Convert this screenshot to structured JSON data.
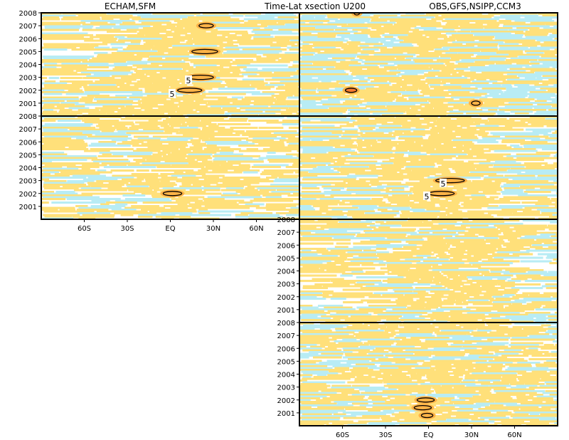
{
  "titles": {
    "left": "ECHAM,SFM",
    "center": "Time-Lat xsection U200",
    "right": "OBS,GFS,NSIPP,CCM3"
  },
  "colors": {
    "positive_light": "#ffe07a",
    "positive_mid": "#ffb347",
    "positive_strong": "#f57a30",
    "negative_light": "#b8ecf4",
    "negative_mid": "#7fd0ee",
    "contour": "#000000"
  },
  "chart_data": [
    {
      "type": "heatmap",
      "panel": "ECHAM",
      "x_ticks": [
        "60S",
        "30S",
        "EQ",
        "30N",
        "60N"
      ],
      "y_ticks": [
        "2001",
        "2002",
        "2003",
        "2004",
        "2005",
        "2006",
        "2007",
        "2008"
      ],
      "x_range": [
        "90S",
        "90N"
      ],
      "y_range": [
        2000,
        2008
      ],
      "contour_labels": [
        "5",
        "5"
      ],
      "contours": [
        {
          "lat_from": 5,
          "lat_to": 22,
          "year": 2002.0
        },
        {
          "lat_from": 12,
          "lat_to": 30,
          "year": 2003.0
        },
        {
          "lat_from": 15,
          "lat_to": 33,
          "year": 2005.0
        },
        {
          "lat_from": 20,
          "lat_to": 30,
          "year": 2007.0
        }
      ]
    },
    {
      "type": "heatmap",
      "panel": "OBS",
      "x_ticks": [
        "60S",
        "30S",
        "EQ",
        "30N",
        "60N"
      ],
      "y_ticks": [
        "2001",
        "2002",
        "2003",
        "2004",
        "2005",
        "2006",
        "2007",
        "2008"
      ],
      "x_range": [
        "90S",
        "90N"
      ],
      "y_range": [
        2000,
        2008
      ],
      "contour_labels": [],
      "contours": [
        {
          "lat_from": -58,
          "lat_to": -50,
          "year": 2002.0
        },
        {
          "lat_from": -52,
          "lat_to": -48,
          "year": 2008.0
        },
        {
          "lat_from": 30,
          "lat_to": 36,
          "year": 2001.0
        }
      ]
    },
    {
      "type": "heatmap",
      "panel": "SFM",
      "x_ticks": [
        "60S",
        "30S",
        "EQ",
        "30N",
        "60N"
      ],
      "y_ticks": [
        "2001",
        "2002",
        "2003",
        "2004",
        "2005",
        "2006",
        "2007",
        "2008"
      ],
      "x_range": [
        "90S",
        "90N"
      ],
      "y_range": [
        2000,
        2008
      ],
      "contour_labels": [],
      "contours": [
        {
          "lat_from": -5,
          "lat_to": 8,
          "year": 2002.0
        }
      ]
    },
    {
      "type": "heatmap",
      "panel": "GFS",
      "x_ticks": [
        "60S",
        "30S",
        "EQ",
        "30N",
        "60N"
      ],
      "y_ticks": [
        "2001",
        "2002",
        "2003",
        "2004",
        "2005",
        "2006",
        "2007",
        "2008"
      ],
      "x_range": [
        "90S",
        "90N"
      ],
      "y_range": [
        2000,
        2008
      ],
      "contour_labels": [
        "5",
        "5"
      ],
      "contours": [
        {
          "lat_from": 5,
          "lat_to": 25,
          "year": 2003.0
        },
        {
          "lat_from": 0,
          "lat_to": 18,
          "year": 2002.0
        }
      ]
    },
    {
      "type": "heatmap",
      "panel": "NSIPP",
      "x_ticks": [
        "60S",
        "30S",
        "EQ",
        "30N",
        "60N"
      ],
      "y_ticks": [
        "2001",
        "2002",
        "2003",
        "2004",
        "2005",
        "2006",
        "2007",
        "2008"
      ],
      "x_range": [
        "90S",
        "90N"
      ],
      "y_range": [
        2000,
        2008
      ],
      "contour_labels": [],
      "contours": []
    },
    {
      "type": "heatmap",
      "panel": "CCM3",
      "x_ticks": [
        "60S",
        "30S",
        "EQ",
        "30N",
        "60N"
      ],
      "y_ticks": [
        "2001",
        "2002",
        "2003",
        "2004",
        "2005",
        "2006",
        "2007",
        "2008"
      ],
      "x_range": [
        "90S",
        "90N"
      ],
      "y_range": [
        2000,
        2008
      ],
      "contour_labels": [],
      "contours": [
        {
          "lat_from": -8,
          "lat_to": 4,
          "year": 2002.0
        },
        {
          "lat_from": -10,
          "lat_to": 2,
          "year": 2001.4
        },
        {
          "lat_from": -5,
          "lat_to": 3,
          "year": 2000.8
        }
      ]
    }
  ]
}
